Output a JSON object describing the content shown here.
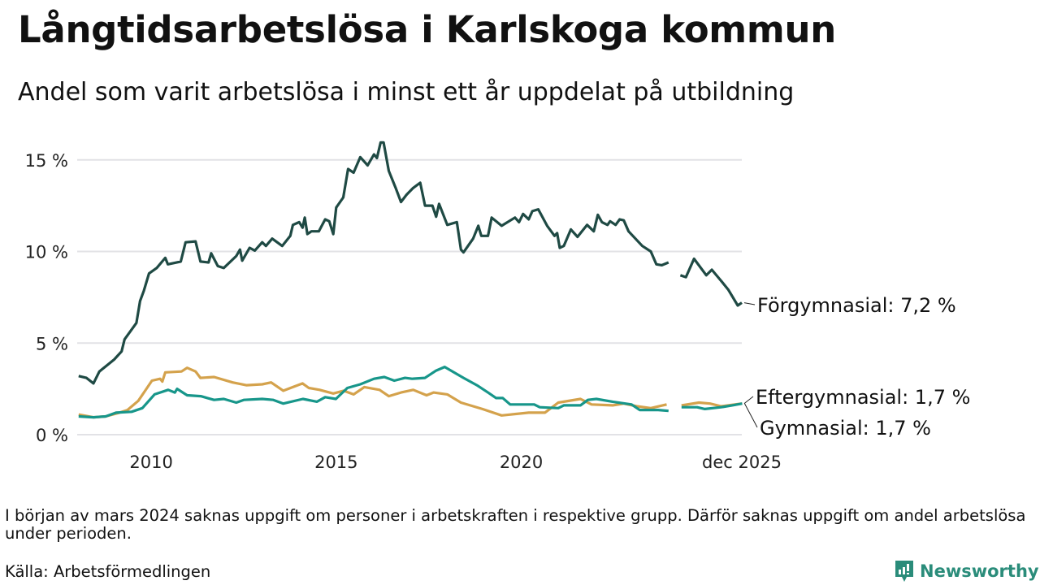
{
  "header": {
    "title": "Långtidsarbetslösa i Karlskoga kommun",
    "subtitle": "Andel som varit arbetslösa i minst ett år uppdelat på utbildning"
  },
  "footer": {
    "note": "I början av mars 2024 saknas uppgift om personer i arbetskraften i respektive grupp. Därför saknas uppgift om andel arbetslösa under perioden.",
    "source": "Källa: Arbetsförmedlingen",
    "logo": "Newsworthy"
  },
  "colors": {
    "forgymnasial": "#1f4a44",
    "gymnasial": "#17968a",
    "eftergymnasial": "#d4a24c",
    "grid": "#e2e2e6"
  },
  "chart_data": {
    "type": "line",
    "title": "Långtidsarbetslösa i Karlskoga kommun",
    "xlabel": "",
    "ylabel": "",
    "xlim": [
      2008.0,
      2025.96
    ],
    "ylim": [
      0,
      16.5
    ],
    "yticks": [
      {
        "v": 0,
        "label": "0 %"
      },
      {
        "v": 5,
        "label": "5 %"
      },
      {
        "v": 10,
        "label": "10 %"
      },
      {
        "v": 15,
        "label": "15 %"
      }
    ],
    "xticks": [
      {
        "v": 2010,
        "label": "2010"
      },
      {
        "v": 2015,
        "label": "2015"
      },
      {
        "v": 2020,
        "label": "2020"
      },
      {
        "v": 2025.96,
        "label": "dec 2025"
      }
    ],
    "grid": true,
    "series": [
      {
        "name": "Förgymnasial",
        "label": "Förgymnasial: 7,2 %",
        "color_key": "forgymnasial",
        "points": [
          [
            2008.04,
            3.2
          ],
          [
            2008.25,
            3.1
          ],
          [
            2008.44,
            2.8
          ],
          [
            2008.6,
            3.45
          ],
          [
            2009.0,
            4.1
          ],
          [
            2009.2,
            4.55
          ],
          [
            2009.28,
            5.2
          ],
          [
            2009.6,
            6.1
          ],
          [
            2009.7,
            7.3
          ],
          [
            2009.8,
            7.85
          ],
          [
            2009.94,
            8.8
          ],
          [
            2010.15,
            9.1
          ],
          [
            2010.38,
            9.65
          ],
          [
            2010.45,
            9.3
          ],
          [
            2010.8,
            9.45
          ],
          [
            2010.93,
            10.5
          ],
          [
            2011.2,
            10.55
          ],
          [
            2011.33,
            9.45
          ],
          [
            2011.55,
            9.4
          ],
          [
            2011.62,
            9.9
          ],
          [
            2011.8,
            9.2
          ],
          [
            2011.96,
            9.1
          ],
          [
            2012.3,
            9.75
          ],
          [
            2012.4,
            10.1
          ],
          [
            2012.46,
            9.5
          ],
          [
            2012.66,
            10.2
          ],
          [
            2012.8,
            10.05
          ],
          [
            2013.0,
            10.5
          ],
          [
            2013.1,
            10.3
          ],
          [
            2013.27,
            10.7
          ],
          [
            2013.54,
            10.3
          ],
          [
            2013.76,
            10.85
          ],
          [
            2013.83,
            11.45
          ],
          [
            2014.0,
            11.6
          ],
          [
            2014.09,
            11.3
          ],
          [
            2014.15,
            11.85
          ],
          [
            2014.22,
            10.95
          ],
          [
            2014.33,
            11.1
          ],
          [
            2014.53,
            11.1
          ],
          [
            2014.7,
            11.75
          ],
          [
            2014.81,
            11.65
          ],
          [
            2014.92,
            10.95
          ],
          [
            2015.0,
            12.4
          ],
          [
            2015.19,
            12.95
          ],
          [
            2015.32,
            14.5
          ],
          [
            2015.47,
            14.3
          ],
          [
            2015.65,
            15.15
          ],
          [
            2015.85,
            14.7
          ],
          [
            2016.02,
            15.3
          ],
          [
            2016.1,
            15.1
          ],
          [
            2016.2,
            15.95
          ],
          [
            2016.28,
            15.95
          ],
          [
            2016.42,
            14.4
          ],
          [
            2016.6,
            13.5
          ],
          [
            2016.75,
            12.7
          ],
          [
            2016.9,
            13.1
          ],
          [
            2017.07,
            13.45
          ],
          [
            2017.27,
            13.75
          ],
          [
            2017.4,
            12.5
          ],
          [
            2017.6,
            12.5
          ],
          [
            2017.7,
            11.9
          ],
          [
            2017.78,
            12.6
          ],
          [
            2018.0,
            11.45
          ],
          [
            2018.26,
            11.6
          ],
          [
            2018.37,
            10.1
          ],
          [
            2018.44,
            9.95
          ],
          [
            2018.7,
            10.7
          ],
          [
            2018.84,
            11.4
          ],
          [
            2018.92,
            10.85
          ],
          [
            2019.1,
            10.85
          ],
          [
            2019.2,
            11.85
          ],
          [
            2019.47,
            11.4
          ],
          [
            2019.83,
            11.85
          ],
          [
            2019.94,
            11.6
          ],
          [
            2020.05,
            12.05
          ],
          [
            2020.2,
            11.75
          ],
          [
            2020.3,
            12.2
          ],
          [
            2020.46,
            12.3
          ],
          [
            2020.7,
            11.4
          ],
          [
            2020.9,
            10.85
          ],
          [
            2020.97,
            11.0
          ],
          [
            2021.04,
            10.2
          ],
          [
            2021.15,
            10.3
          ],
          [
            2021.34,
            11.2
          ],
          [
            2021.52,
            10.8
          ],
          [
            2021.78,
            11.45
          ],
          [
            2021.96,
            11.1
          ],
          [
            2022.07,
            12.0
          ],
          [
            2022.18,
            11.6
          ],
          [
            2022.33,
            11.45
          ],
          [
            2022.4,
            11.65
          ],
          [
            2022.55,
            11.45
          ],
          [
            2022.66,
            11.75
          ],
          [
            2022.77,
            11.7
          ],
          [
            2022.9,
            11.1
          ],
          [
            2023.27,
            10.3
          ],
          [
            2023.5,
            10.0
          ],
          [
            2023.65,
            9.3
          ],
          [
            2023.8,
            9.25
          ],
          [
            2023.98,
            9.4
          ],
          null,
          [
            2024.3,
            8.7
          ],
          [
            2024.45,
            8.6
          ],
          [
            2024.67,
            9.6
          ],
          [
            2025.0,
            8.7
          ],
          [
            2025.15,
            9.0
          ],
          [
            2025.4,
            8.4
          ],
          [
            2025.6,
            7.9
          ],
          [
            2025.85,
            7.05
          ],
          [
            2025.96,
            7.2
          ]
        ]
      },
      {
        "name": "Eftergymnasial",
        "label": "Eftergymnasial: 1,7 %",
        "color_key": "eftergymnasial",
        "points": [
          [
            2008.04,
            1.1
          ],
          [
            2008.44,
            0.95
          ],
          [
            2008.77,
            1.0
          ],
          [
            2009.14,
            1.2
          ],
          [
            2009.36,
            1.35
          ],
          [
            2009.65,
            1.85
          ],
          [
            2009.82,
            2.35
          ],
          [
            2010.02,
            2.95
          ],
          [
            2010.24,
            3.05
          ],
          [
            2010.3,
            2.9
          ],
          [
            2010.38,
            3.4
          ],
          [
            2010.82,
            3.45
          ],
          [
            2010.97,
            3.65
          ],
          [
            2011.2,
            3.45
          ],
          [
            2011.33,
            3.1
          ],
          [
            2011.7,
            3.15
          ],
          [
            2012.2,
            2.85
          ],
          [
            2012.57,
            2.7
          ],
          [
            2013.0,
            2.75
          ],
          [
            2013.24,
            2.85
          ],
          [
            2013.57,
            2.4
          ],
          [
            2013.83,
            2.6
          ],
          [
            2014.09,
            2.8
          ],
          [
            2014.26,
            2.55
          ],
          [
            2014.55,
            2.45
          ],
          [
            2014.92,
            2.25
          ],
          [
            2015.2,
            2.4
          ],
          [
            2015.47,
            2.2
          ],
          [
            2015.76,
            2.6
          ],
          [
            2016.17,
            2.45
          ],
          [
            2016.42,
            2.1
          ],
          [
            2016.75,
            2.3
          ],
          [
            2017.08,
            2.45
          ],
          [
            2017.44,
            2.15
          ],
          [
            2017.63,
            2.3
          ],
          [
            2018.0,
            2.2
          ],
          [
            2018.37,
            1.75
          ],
          [
            2018.95,
            1.4
          ],
          [
            2019.47,
            1.05
          ],
          [
            2020.2,
            1.2
          ],
          [
            2020.64,
            1.2
          ],
          [
            2021.0,
            1.75
          ],
          [
            2021.6,
            1.95
          ],
          [
            2021.9,
            1.65
          ],
          [
            2022.47,
            1.6
          ],
          [
            2022.77,
            1.7
          ],
          [
            2023.12,
            1.55
          ],
          [
            2023.5,
            1.45
          ],
          [
            2023.93,
            1.65
          ],
          null,
          [
            2024.33,
            1.6
          ],
          [
            2024.8,
            1.75
          ],
          [
            2025.1,
            1.7
          ],
          [
            2025.4,
            1.55
          ],
          [
            2025.96,
            1.7
          ]
        ]
      },
      {
        "name": "Gymnasial",
        "label": "Gymnasial: 1,7 %",
        "color_key": "gymnasial",
        "points": [
          [
            2008.04,
            1.0
          ],
          [
            2008.44,
            0.95
          ],
          [
            2008.77,
            1.0
          ],
          [
            2009.05,
            1.2
          ],
          [
            2009.47,
            1.25
          ],
          [
            2009.76,
            1.45
          ],
          [
            2010.09,
            2.2
          ],
          [
            2010.46,
            2.45
          ],
          [
            2010.64,
            2.3
          ],
          [
            2010.7,
            2.5
          ],
          [
            2010.97,
            2.15
          ],
          [
            2011.34,
            2.1
          ],
          [
            2011.7,
            1.9
          ],
          [
            2011.96,
            1.95
          ],
          [
            2012.3,
            1.75
          ],
          [
            2012.5,
            1.9
          ],
          [
            2013.0,
            1.95
          ],
          [
            2013.3,
            1.9
          ],
          [
            2013.57,
            1.7
          ],
          [
            2014.1,
            1.95
          ],
          [
            2014.48,
            1.8
          ],
          [
            2014.7,
            2.05
          ],
          [
            2014.99,
            1.95
          ],
          [
            2015.3,
            2.55
          ],
          [
            2015.65,
            2.75
          ],
          [
            2016.02,
            3.05
          ],
          [
            2016.3,
            3.15
          ],
          [
            2016.57,
            2.95
          ],
          [
            2016.86,
            3.1
          ],
          [
            2017.05,
            3.05
          ],
          [
            2017.4,
            3.1
          ],
          [
            2017.7,
            3.5
          ],
          [
            2017.93,
            3.7
          ],
          [
            2018.44,
            3.1
          ],
          [
            2018.8,
            2.7
          ],
          [
            2019.1,
            2.3
          ],
          [
            2019.32,
            2.0
          ],
          [
            2019.5,
            2.0
          ],
          [
            2019.7,
            1.65
          ],
          [
            2020.35,
            1.65
          ],
          [
            2020.5,
            1.5
          ],
          [
            2021.0,
            1.45
          ],
          [
            2021.15,
            1.6
          ],
          [
            2021.6,
            1.6
          ],
          [
            2021.8,
            1.9
          ],
          [
            2022.03,
            1.95
          ],
          [
            2022.47,
            1.8
          ],
          [
            2022.98,
            1.65
          ],
          [
            2023.2,
            1.35
          ],
          [
            2023.7,
            1.35
          ],
          [
            2023.98,
            1.3
          ],
          null,
          [
            2024.33,
            1.5
          ],
          [
            2024.75,
            1.5
          ],
          [
            2024.96,
            1.4
          ],
          [
            2025.4,
            1.5
          ],
          [
            2025.7,
            1.6
          ],
          [
            2025.97,
            1.7
          ]
        ]
      }
    ]
  }
}
